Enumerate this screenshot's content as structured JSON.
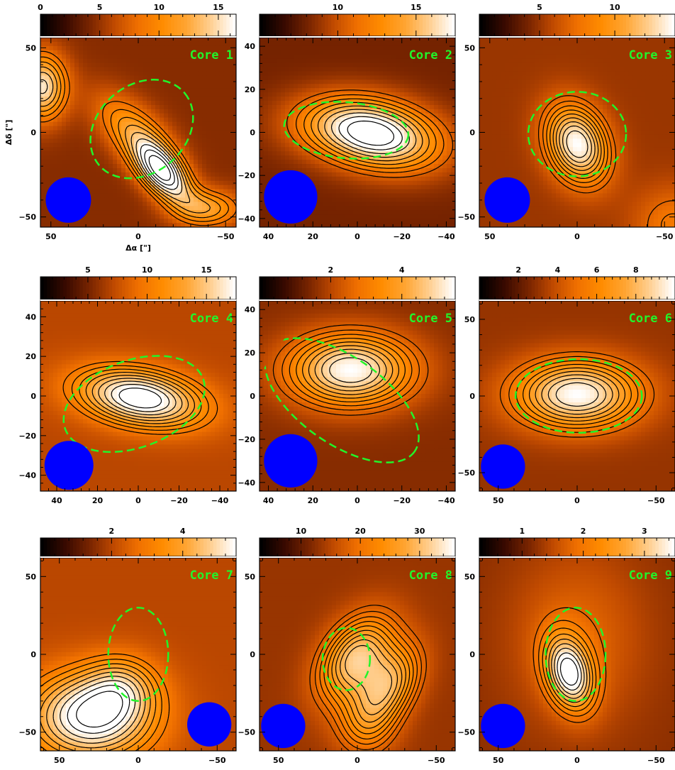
{
  "figure": {
    "xlabel": "Δα [\"]",
    "ylabel": "Δδ [\"]"
  },
  "colors": {
    "contour": "#000000",
    "fit_ellipse": "#21f52a",
    "beam": "#0000ff",
    "label": "#21f52a"
  },
  "colormap": [
    "#000000",
    "#3a0a00",
    "#7a2500",
    "#c04a00",
    "#f07000",
    "#ff8c00",
    "#ffa533",
    "#ffcf90",
    "#ffffff"
  ],
  "chart_data": [
    {
      "type": "heatmap",
      "label": "Core 1",
      "xlim": [
        56,
        -56
      ],
      "ylim": [
        -56,
        56
      ],
      "xticks": [
        50,
        0,
        -50
      ],
      "yticks": [
        50,
        0,
        -50
      ],
      "color_range": [
        0,
        16.5
      ],
      "color_ticks": [
        0,
        5,
        10,
        15
      ],
      "show_xlabel": true,
      "show_ylabel": true,
      "peaks": [
        {
          "x": -14,
          "y": -24,
          "amp": 14,
          "sx": 15,
          "sy": 8,
          "angle": 50
        },
        {
          "x": 2,
          "y": 0,
          "amp": 7,
          "sx": 20,
          "sy": 10,
          "angle": 45
        },
        {
          "x": 55,
          "y": 27,
          "amp": 11,
          "sx": 10,
          "sy": 14,
          "angle": 0
        },
        {
          "x": -40,
          "y": -45,
          "amp": 7,
          "sx": 14,
          "sy": 8,
          "angle": 0
        }
      ],
      "background": 4.5,
      "fit_ellipse": {
        "x": -2,
        "y": 2,
        "a": 32,
        "b": 26,
        "angle": -40
      },
      "beam": {
        "x": 40,
        "y": -40,
        "r": 13
      }
    },
    {
      "type": "heatmap",
      "label": "Core 2",
      "xlim": [
        44,
        -44
      ],
      "ylim": [
        -44,
        44
      ],
      "xticks": [
        40,
        20,
        0,
        -20,
        -40
      ],
      "yticks": [
        40,
        20,
        0,
        -20,
        -40
      ],
      "color_range": [
        5,
        17.5
      ],
      "color_ticks": [
        10,
        15
      ],
      "show_xlabel": false,
      "show_ylabel": false,
      "peaks": [
        {
          "x": -10,
          "y": -2,
          "amp": 10,
          "sx": 20,
          "sy": 11,
          "angle": 10
        },
        {
          "x": 10,
          "y": 5,
          "amp": 3,
          "sx": 18,
          "sy": 10,
          "angle": 0
        }
      ],
      "background": 8,
      "fit_ellipse": {
        "x": 5,
        "y": 1,
        "a": 28,
        "b": 13,
        "angle": 5
      },
      "beam": {
        "x": 30,
        "y": -30,
        "r": 12
      }
    },
    {
      "type": "heatmap",
      "label": "Core 3",
      "xlim": [
        56,
        -56
      ],
      "ylim": [
        -56,
        56
      ],
      "xticks": [
        50,
        0,
        -50
      ],
      "yticks": [
        50,
        0,
        -50
      ],
      "color_range": [
        1,
        14
      ],
      "color_ticks": [
        5,
        10
      ],
      "show_xlabel": false,
      "show_ylabel": false,
      "peaks": [
        {
          "x": 0,
          "y": -7,
          "amp": 9,
          "sx": 12,
          "sy": 17,
          "angle": -20
        },
        {
          "x": -55,
          "y": -55,
          "amp": 3,
          "sx": 16,
          "sy": 16,
          "angle": 0
        }
      ],
      "background": 5,
      "fit_ellipse": {
        "x": 0,
        "y": -1,
        "a": 28,
        "b": 25,
        "angle": 0
      },
      "beam": {
        "x": 40,
        "y": -40,
        "r": 13
      }
    },
    {
      "type": "heatmap",
      "label": "Core 4",
      "xlim": [
        48,
        -48
      ],
      "ylim": [
        -48,
        48
      ],
      "xticks": [
        40,
        20,
        0,
        -20,
        -40
      ],
      "yticks": [
        40,
        20,
        0,
        -20,
        -40
      ],
      "color_range": [
        1,
        17.5
      ],
      "color_ticks": [
        5,
        10,
        15
      ],
      "show_xlabel": false,
      "show_ylabel": false,
      "peaks": [
        {
          "x": -1,
          "y": -1,
          "amp": 12,
          "sx": 22,
          "sy": 10,
          "angle": 10
        }
      ],
      "background": 7,
      "fit_ellipse": {
        "x": 2,
        "y": -4,
        "a": 36,
        "b": 22,
        "angle": -20
      },
      "beam": {
        "x": 34,
        "y": -35,
        "r": 12
      }
    },
    {
      "type": "heatmap",
      "label": "Core 5",
      "xlim": [
        44,
        -44
      ],
      "ylim": [
        -44,
        44
      ],
      "xticks": [
        40,
        20,
        0,
        -20,
        -40
      ],
      "yticks": [
        40,
        20,
        0,
        -20,
        -40
      ],
      "color_range": [
        0,
        5.5
      ],
      "color_ticks": [
        2,
        4
      ],
      "show_xlabel": false,
      "show_ylabel": false,
      "peaks": [
        {
          "x": 3,
          "y": 12,
          "amp": 4,
          "sx": 20,
          "sy": 12,
          "angle": 0
        }
      ],
      "background": 1.5,
      "fit_ellipse": {
        "x": 7,
        "y": -2,
        "a": 40,
        "b": 20,
        "angle": 35
      },
      "beam": {
        "x": 30,
        "y": -30,
        "r": 12
      }
    },
    {
      "type": "heatmap",
      "label": "Core 6",
      "xlim": [
        62,
        -62
      ],
      "ylim": [
        -62,
        62
      ],
      "xticks": [
        50,
        0,
        -50
      ],
      "yticks": [
        50,
        0,
        -50
      ],
      "color_range": [
        0,
        10
      ],
      "color_ticks": [
        2,
        4,
        6,
        8
      ],
      "show_xlabel": false,
      "show_ylabel": false,
      "peaks": [
        {
          "x": 0,
          "y": 1,
          "amp": 7,
          "sx": 28,
          "sy": 16,
          "angle": 0
        }
      ],
      "background": 3,
      "fit_ellipse": {
        "x": -1,
        "y": 0,
        "a": 40,
        "b": 24,
        "angle": 0
      },
      "beam": {
        "x": 47,
        "y": -46,
        "r": 14
      }
    },
    {
      "type": "heatmap",
      "label": "Core 7",
      "xlim": [
        62,
        -62
      ],
      "ylim": [
        -62,
        62
      ],
      "xticks": [
        50,
        0,
        -50
      ],
      "yticks": [
        50,
        0,
        -50
      ],
      "color_range": [
        0,
        5.5
      ],
      "color_ticks": [
        2,
        4
      ],
      "show_xlabel": false,
      "show_ylabel": false,
      "peaks": [
        {
          "x": 30,
          "y": -40,
          "amp": 4,
          "sx": 28,
          "sy": 20,
          "angle": 0
        },
        {
          "x": 10,
          "y": -20,
          "amp": 1.5,
          "sx": 16,
          "sy": 14,
          "angle": 0
        }
      ],
      "background": 2,
      "fit_ellipse": {
        "x": 0,
        "y": 0,
        "a": 19,
        "b": 30,
        "angle": 0
      },
      "beam": {
        "x": -45,
        "y": -45,
        "r": 14
      }
    },
    {
      "type": "heatmap",
      "label": "Core 8",
      "xlim": [
        62,
        -62
      ],
      "ylim": [
        -62,
        62
      ],
      "xticks": [
        50,
        0,
        -50
      ],
      "yticks": [
        50,
        0,
        -50
      ],
      "color_range": [
        3,
        36
      ],
      "color_ticks": [
        10,
        20,
        30
      ],
      "show_xlabel": false,
      "show_ylabel": false,
      "peaks": [
        {
          "x": 1,
          "y": -2,
          "amp": 18,
          "sx": 14,
          "sy": 22,
          "angle": 35
        },
        {
          "x": -21,
          "y": -20,
          "amp": 14,
          "sx": 12,
          "sy": 20,
          "angle": 30
        },
        {
          "x": -5,
          "y": -45,
          "amp": 8,
          "sx": 14,
          "sy": 16,
          "angle": 0
        }
      ],
      "background": 13,
      "fit_ellipse": {
        "x": 7,
        "y": -3,
        "a": 15,
        "b": 20,
        "angle": 0
      },
      "beam": {
        "x": 47,
        "y": -46,
        "r": 14
      }
    },
    {
      "type": "heatmap",
      "label": "Core 9",
      "xlim": [
        62,
        -62
      ],
      "ylim": [
        -62,
        62
      ],
      "xticks": [
        50,
        0,
        -50
      ],
      "yticks": [
        50,
        0,
        -50
      ],
      "color_range": [
        0.3,
        3.5
      ],
      "color_ticks": [
        1,
        2,
        3
      ],
      "show_xlabel": false,
      "show_ylabel": false,
      "peaks": [
        {
          "x": 5,
          "y": -12,
          "amp": 2.2,
          "sx": 10,
          "sy": 17,
          "angle": -15
        },
        {
          "x": 0,
          "y": 10,
          "amp": 0.6,
          "sx": 30,
          "sy": 40,
          "angle": 0
        }
      ],
      "background": 1.2,
      "fit_ellipse": {
        "x": 1,
        "y": 0,
        "a": 19,
        "b": 30,
        "angle": 0
      },
      "beam": {
        "x": 47,
        "y": -46,
        "r": 14
      }
    }
  ]
}
